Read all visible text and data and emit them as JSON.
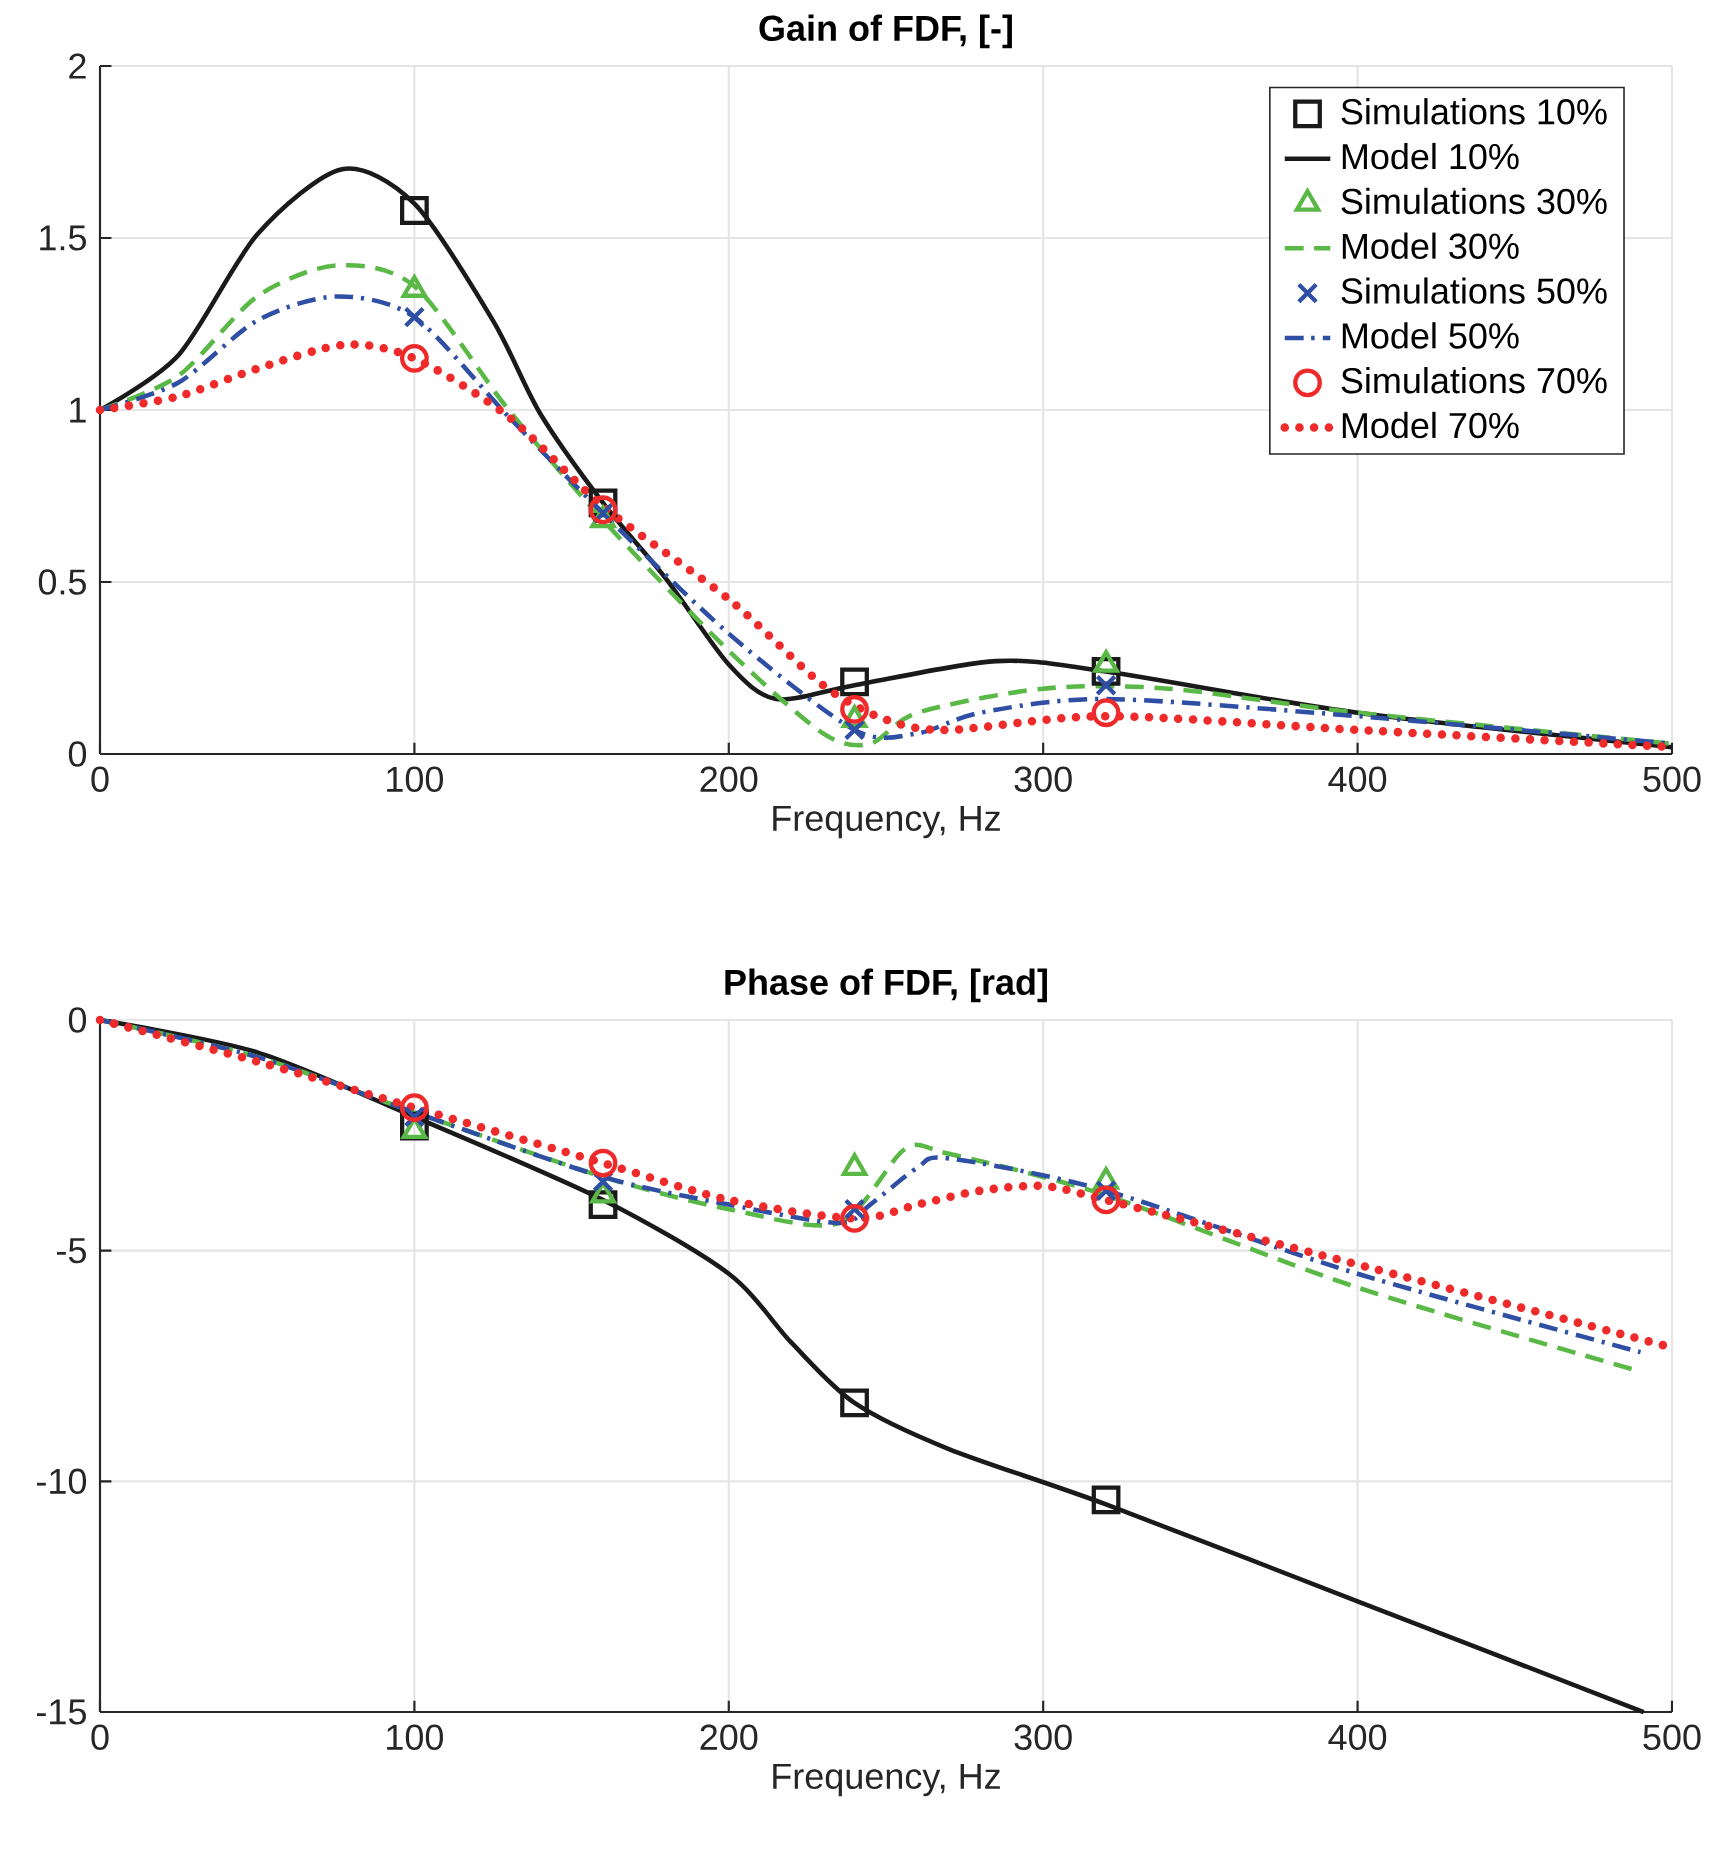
{
  "chart_data": [
    {
      "type": "line",
      "title": "Gain of FDF, [-]",
      "xlabel": "Frequency, Hz",
      "xlim": [
        0,
        500
      ],
      "xticks": [
        0,
        100,
        200,
        300,
        400,
        500
      ],
      "ylim": [
        0,
        2
      ],
      "yticks": [
        0,
        0.5,
        1,
        1.5,
        2
      ],
      "grid": true,
      "legend": "top right",
      "series": [
        {
          "name": "Simulations 10%",
          "type": "scatter",
          "marker": "square",
          "color": "#1a1a1a",
          "x": [
            100,
            160,
            240,
            320
          ],
          "values": [
            1.58,
            0.73,
            0.21,
            0.24
          ]
        },
        {
          "name": "Model 10%",
          "type": "line",
          "line_style": "solid",
          "color": "#1a1a1a",
          "x": [
            0,
            25,
            50,
            77,
            100,
            125,
            140,
            160,
            180,
            200,
            215,
            240,
            285,
            320,
            400,
            500
          ],
          "values": [
            1,
            1.16,
            1.51,
            1.7,
            1.6,
            1.26,
            0.99,
            0.73,
            0.51,
            0.26,
            0.16,
            0.2,
            0.27,
            0.24,
            0.12,
            0.02
          ]
        },
        {
          "name": "Simulations 30%",
          "type": "scatter",
          "marker": "triangle",
          "color": "#5ab946",
          "x": [
            100,
            160,
            240,
            320
          ],
          "values": [
            1.35,
            0.68,
            0.1,
            0.26
          ]
        },
        {
          "name": "Model 30%",
          "type": "line",
          "line_style": "dashed",
          "color": "#5ab946",
          "x": [
            0,
            25,
            50,
            75,
            100,
            130,
            160,
            200,
            230,
            245,
            260,
            300,
            340,
            400,
            500
          ],
          "values": [
            1,
            1.1,
            1.33,
            1.42,
            1.36,
            1.0,
            0.68,
            0.3,
            0.06,
            0.03,
            0.12,
            0.19,
            0.19,
            0.12,
            0.03
          ]
        },
        {
          "name": "Simulations 50%",
          "type": "scatter",
          "marker": "cross",
          "color": "#2e4fa3",
          "x": [
            100,
            160,
            240,
            320
          ],
          "values": [
            1.27,
            0.7,
            0.07,
            0.2
          ]
        },
        {
          "name": "Model 50%",
          "type": "line",
          "line_style": "dashdot",
          "color": "#2e4fa3",
          "x": [
            0,
            25,
            50,
            75,
            100,
            130,
            160,
            200,
            240,
            260,
            280,
            320,
            400,
            500
          ],
          "values": [
            1,
            1.08,
            1.26,
            1.33,
            1.27,
            0.98,
            0.7,
            0.35,
            0.07,
            0.06,
            0.12,
            0.16,
            0.11,
            0.03
          ]
        },
        {
          "name": "Simulations 70%",
          "type": "scatter",
          "marker": "circle",
          "color": "#ee2a2a",
          "x": [
            100,
            160,
            240,
            320
          ],
          "values": [
            1.15,
            0.71,
            0.13,
            0.12
          ]
        },
        {
          "name": "Model 70%",
          "type": "line",
          "line_style": "dotted",
          "color": "#ee2a2a",
          "x": [
            0,
            25,
            50,
            78,
            100,
            130,
            160,
            200,
            230,
            250,
            270,
            320,
            400,
            500
          ],
          "values": [
            1,
            1.04,
            1.12,
            1.19,
            1.15,
            0.98,
            0.72,
            0.45,
            0.2,
            0.1,
            0.07,
            0.11,
            0.07,
            0.02
          ]
        }
      ]
    },
    {
      "type": "line",
      "title": "Phase of FDF, [rad]",
      "xlabel": "Frequency, Hz",
      "xlim": [
        0,
        500
      ],
      "xticks": [
        0,
        100,
        200,
        300,
        400,
        500
      ],
      "ylim": [
        -15,
        0
      ],
      "yticks": [
        -15,
        -10,
        -5,
        0
      ],
      "grid": true,
      "series": [
        {
          "type": "scatter",
          "marker": "square",
          "color": "#1a1a1a",
          "x": [
            100,
            160,
            240,
            320
          ],
          "values": [
            -2.3,
            -4.0,
            -8.3,
            -10.4
          ]
        },
        {
          "type": "line",
          "line_style": "solid",
          "color": "#1a1a1a",
          "x": [
            0,
            50,
            100,
            160,
            200,
            220,
            240,
            270,
            320,
            400,
            491
          ],
          "values": [
            0,
            -0.7,
            -2.1,
            -3.9,
            -5.5,
            -7.0,
            -8.3,
            -9.3,
            -10.5,
            -12.6,
            -15
          ]
        },
        {
          "type": "scatter",
          "marker": "triangle",
          "color": "#5ab946",
          "x": [
            100,
            160,
            240,
            320
          ],
          "values": [
            -2.4,
            -3.8,
            -3.2,
            -3.5
          ]
        },
        {
          "type": "line",
          "line_style": "dashed",
          "color": "#5ab946",
          "x": [
            0,
            50,
            100,
            160,
            200,
            235,
            256,
            270,
            320,
            400,
            489
          ],
          "values": [
            0,
            -0.8,
            -2.0,
            -3.4,
            -4.1,
            -4.4,
            -2.8,
            -2.9,
            -3.8,
            -5.8,
            -7.6
          ]
        },
        {
          "type": "scatter",
          "marker": "cross",
          "color": "#2e4fa3",
          "x": [
            100,
            160,
            240,
            320
          ],
          "values": [
            -2.1,
            -3.5,
            -4.1,
            -3.7
          ]
        },
        {
          "type": "line",
          "line_style": "dashdot",
          "color": "#2e4fa3",
          "x": [
            0,
            50,
            100,
            160,
            200,
            235,
            245,
            260,
            270,
            320,
            400,
            490
          ],
          "values": [
            0,
            -0.8,
            -2.0,
            -3.4,
            -4.0,
            -4.4,
            -4.0,
            -3.2,
            -3.0,
            -3.7,
            -5.5,
            -7.2
          ]
        },
        {
          "type": "scatter",
          "marker": "circle",
          "color": "#ee2a2a",
          "x": [
            100,
            160,
            240,
            320
          ],
          "values": [
            -1.9,
            -3.1,
            -4.3,
            -3.9
          ]
        },
        {
          "type": "line",
          "line_style": "dotted",
          "color": "#ee2a2a",
          "x": [
            0,
            50,
            100,
            160,
            200,
            240,
            260,
            280,
            300,
            320,
            400,
            500
          ],
          "values": [
            0,
            -0.9,
            -1.9,
            -3.1,
            -3.9,
            -4.3,
            -4.0,
            -3.7,
            -3.6,
            -3.9,
            -5.3,
            -7.1
          ]
        }
      ]
    }
  ]
}
